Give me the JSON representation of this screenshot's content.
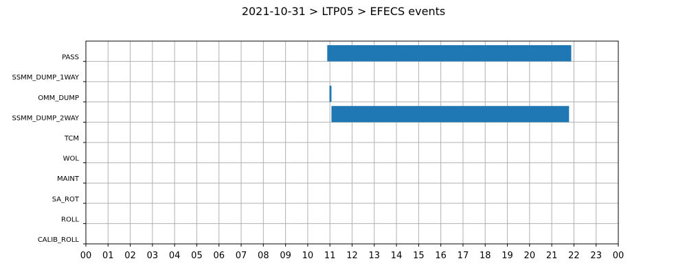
{
  "chart_data": {
    "type": "bar",
    "orientation": "horizontal",
    "title": "2021-10-31 > LTP05 > EFECS events",
    "xlabel": "",
    "ylabel": "",
    "xlim": [
      0,
      24
    ],
    "x_tick_labels": [
      "00",
      "01",
      "02",
      "03",
      "04",
      "05",
      "06",
      "07",
      "08",
      "09",
      "10",
      "11",
      "12",
      "13",
      "14",
      "15",
      "16",
      "17",
      "18",
      "19",
      "20",
      "21",
      "22",
      "23",
      "00"
    ],
    "categories": [
      "PASS",
      "SSMM_DUMP_1WAY",
      "OMM_DUMP",
      "SSMM_DUMP_2WAY",
      "TCM",
      "WOL",
      "MAINT",
      "SA_ROT",
      "ROLL",
      "CALIB_ROLL"
    ],
    "events": [
      {
        "category": "PASS",
        "start": 10.88,
        "end": 21.88
      },
      {
        "category": "OMM_DUMP",
        "start": 10.98,
        "end": 11.07
      },
      {
        "category": "SSMM_DUMP_2WAY",
        "start": 11.07,
        "end": 21.78
      }
    ],
    "grid": true,
    "bar_color": "#1f77b4"
  }
}
